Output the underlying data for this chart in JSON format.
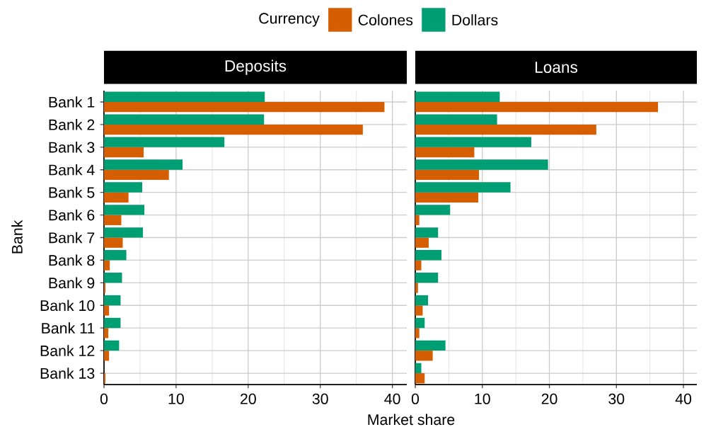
{
  "chart_data": [
    {
      "type": "bar",
      "orientation": "horizontal",
      "title": "Deposits",
      "xlabel": "Market share",
      "ylabel": "Bank",
      "legend_title": "Currency",
      "legend": "top",
      "grid": true,
      "categories": [
        "Bank 1",
        "Bank 2",
        "Bank 3",
        "Bank 4",
        "Bank 5",
        "Bank 6",
        "Bank 7",
        "Bank 8",
        "Bank 9",
        "Bank 10",
        "Bank 11",
        "Bank 12",
        "Bank 13"
      ],
      "xlim": [
        0,
        42
      ],
      "xticks": [
        0,
        10,
        20,
        30,
        40
      ],
      "series": [
        {
          "name": "Colones",
          "color": "#d55e00",
          "values": [
            38.9,
            35.9,
            5.5,
            9.0,
            3.4,
            2.4,
            2.6,
            0.8,
            0.2,
            0.7,
            0.6,
            0.7,
            0.2
          ]
        },
        {
          "name": "Dollars",
          "color": "#009e73",
          "values": [
            22.3,
            22.2,
            16.7,
            10.9,
            5.3,
            5.6,
            5.4,
            3.1,
            2.5,
            2.3,
            2.3,
            2.1,
            0
          ]
        }
      ]
    },
    {
      "type": "bar",
      "orientation": "horizontal",
      "title": "Loans",
      "grid": true,
      "tick_labels": "x",
      "categories": [
        null,
        null,
        null,
        null,
        null,
        null,
        null,
        null,
        null,
        null,
        null,
        null,
        null
      ],
      "xlim": [
        0,
        42
      ],
      "xticks": [
        0,
        10,
        20,
        30,
        40
      ],
      "series": [
        {
          "color": "#d55e00",
          "values": [
            36.2,
            27.0,
            8.8,
            9.5,
            9.4,
            0.6,
            2.0,
            0.9,
            0.4,
            1.1,
            0.6,
            2.6,
            1.4
          ]
        },
        {
          "color": "#009e73",
          "values": [
            12.6,
            12.2,
            17.3,
            19.8,
            14.2,
            5.2,
            3.4,
            3.9,
            3.4,
            1.9,
            1.4,
            4.5,
            0.9
          ]
        }
      ]
    }
  ]
}
